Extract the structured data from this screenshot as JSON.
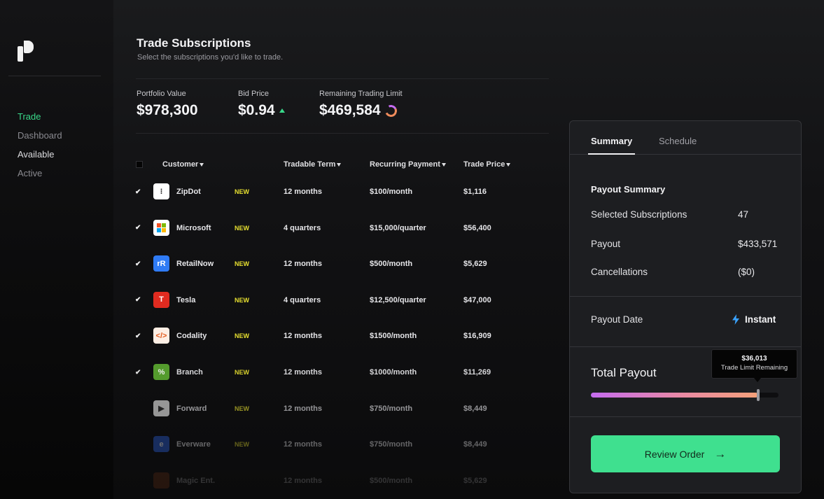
{
  "window": {
    "controls": [
      "#ff5f57",
      "#febc2e",
      "#28c840"
    ]
  },
  "sidebar": {
    "items": [
      {
        "label": "Trade",
        "state": "active"
      },
      {
        "label": "Dashboard",
        "state": "normal"
      },
      {
        "label": "Available",
        "state": "bright"
      },
      {
        "label": "Active",
        "state": "normal"
      }
    ]
  },
  "page": {
    "title": "Trade Subscriptions",
    "subtitle": "Select the subscriptions you'd like to trade."
  },
  "stats": {
    "portfolio_label": "Portfolio Value",
    "portfolio_value": "$978,300",
    "bid_label": "Bid Price",
    "bid_value": "$0.94",
    "limit_label": "Remaining Trading Limit",
    "limit_value": "$469,584"
  },
  "table": {
    "headers": {
      "customer": "Customer",
      "term": "Tradable Term",
      "payment": "Recurring Payment",
      "price": "Trade Price"
    },
    "rows": [
      {
        "name": "ZipDot",
        "badge": "NEW",
        "term": "12 months",
        "payment": "$100/month",
        "price": "$1,116",
        "checked": true,
        "logo_text": "⁝",
        "logo_bg": "#ffffff",
        "logo_fg": "#111111",
        "opacity": 1
      },
      {
        "name": "Microsoft",
        "badge": "NEW",
        "term": "4 quarters",
        "payment": "$15,000/quarter",
        "price": "$56,400",
        "checked": true,
        "logo_text": "",
        "logo_bg": "#ffffff",
        "logo_fg": "#111111",
        "opacity": 1
      },
      {
        "name": "RetailNow",
        "badge": "NEW",
        "term": "12 months",
        "payment": "$500/month",
        "price": "$5,629",
        "checked": true,
        "logo_text": "rR",
        "logo_bg": "#2f7bf5",
        "logo_fg": "#ffffff",
        "opacity": 1
      },
      {
        "name": "Tesla",
        "badge": "NEW",
        "term": "4 quarters",
        "payment": "$12,500/quarter",
        "price": "$47,000",
        "checked": true,
        "logo_text": "T",
        "logo_bg": "#e02b20",
        "logo_fg": "#ffffff",
        "opacity": 1
      },
      {
        "name": "Codality",
        "badge": "NEW",
        "term": "12 months",
        "payment": "$1500/month",
        "price": "$16,909",
        "checked": true,
        "logo_text": "</>",
        "logo_bg": "#fdeee4",
        "logo_fg": "#e25a1c",
        "opacity": 1
      },
      {
        "name": "Branch",
        "badge": "NEW",
        "term": "12 months",
        "payment": "$1000/month",
        "price": "$11,269",
        "checked": true,
        "logo_text": "%",
        "logo_bg": "#5aa830",
        "logo_fg": "#ffffff",
        "opacity": 0.92
      },
      {
        "name": "Forward",
        "badge": "NEW",
        "term": "12 months",
        "payment": "$750/month",
        "price": "$8,449",
        "checked": false,
        "logo_text": "▶",
        "logo_bg": "#eaeaea",
        "logo_fg": "#333333",
        "opacity": 0.62
      },
      {
        "name": "Everware",
        "badge": "NEW",
        "term": "12 months",
        "payment": "$750/month",
        "price": "$8,449",
        "checked": false,
        "logo_text": "e",
        "logo_bg": "#2b5fd8",
        "logo_fg": "#ffffff",
        "opacity": 0.4
      },
      {
        "name": "Magic Ent.",
        "badge": "",
        "term": "12 months",
        "payment": "$500/month",
        "price": "$5,629",
        "checked": false,
        "logo_text": "",
        "logo_bg": "#a0461b",
        "logo_fg": "#ffffff",
        "opacity": 0.18
      }
    ]
  },
  "panel": {
    "tabs": {
      "active": "Summary",
      "other": "Schedule"
    },
    "section_title": "Payout Summary",
    "selected_label": "Selected Subscriptions",
    "selected_value": "47",
    "payout_label": "Payout",
    "payout_value": "$433,571",
    "cancel_label": "Cancellations",
    "cancel_value": "($0)",
    "date_label": "Payout Date",
    "date_value": "Instant",
    "total_label": "Total Payout",
    "tooltip_value": "$36,013",
    "tooltip_label": "Trade Limit Remaining",
    "slider_fraction": 0.89,
    "button_label": "Review Order",
    "button_arrow": "→"
  },
  "colors": {
    "accent": "#39d98a",
    "button": "#3fe08f",
    "badge": "#e7e030"
  }
}
